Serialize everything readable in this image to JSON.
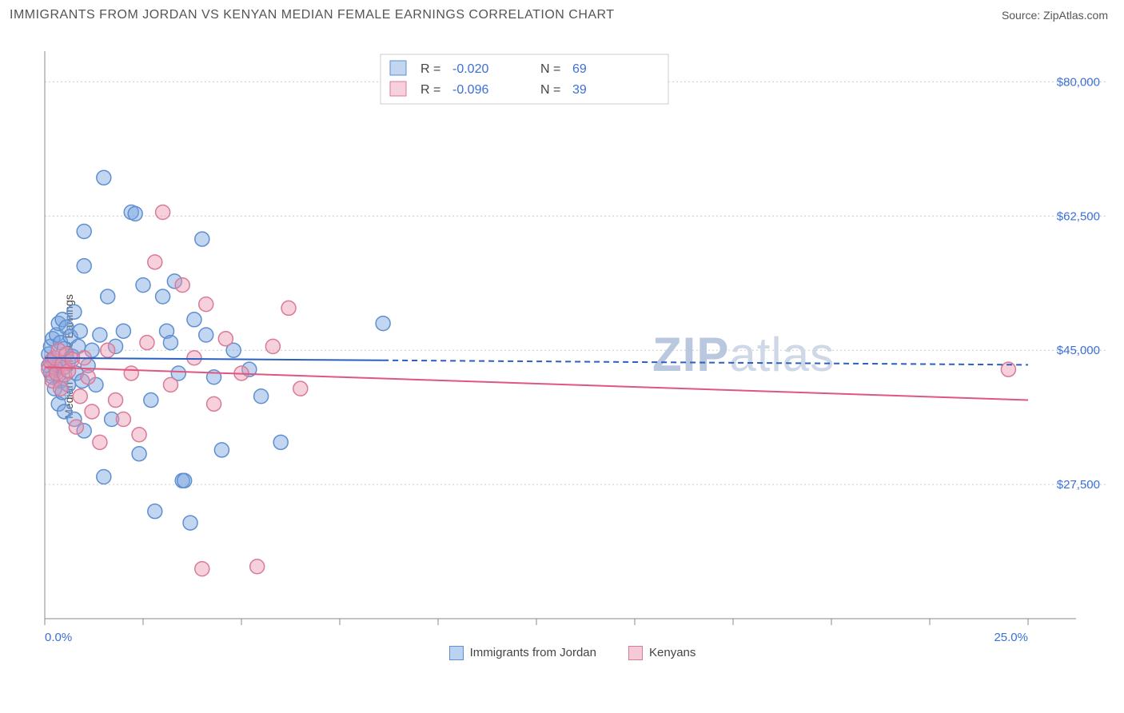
{
  "title": "IMMIGRANTS FROM JORDAN VS KENYAN MEDIAN FEMALE EARNINGS CORRELATION CHART",
  "source_label": "Source:",
  "source_name": "ZipAtlas.com",
  "ylabel": "Median Female Earnings",
  "watermark": "ZIPatlas",
  "chart": {
    "type": "scatter",
    "background": "#ffffff",
    "grid_color": "#cccccc",
    "axis_color": "#888888",
    "xlim": [
      0,
      25
    ],
    "ylim": [
      10000,
      84000
    ],
    "x_tick_positions": [
      0,
      2.5,
      5,
      7.5,
      10,
      12.5,
      15,
      17.5,
      20,
      22.5,
      25
    ],
    "x_tick_labels_show": [
      0,
      25
    ],
    "x_tick_labels": {
      "0": "0.0%",
      "25": "25.0%"
    },
    "y_grid_positions": [
      27500,
      45000,
      62500,
      80000
    ],
    "y_tick_labels": {
      "27500": "$27,500",
      "45000": "$45,000",
      "62500": "$62,500",
      "80000": "$80,000"
    },
    "marker_radius": 9,
    "marker_stroke_width": 1.5,
    "series": [
      {
        "name": "Immigrants from Jordan",
        "fill": "rgba(120,165,225,0.45)",
        "stroke": "#5e8fd0",
        "r_value": "-0.020",
        "n_value": "69",
        "regression": {
          "y_start": 44000,
          "y_end": 43100,
          "solid_until_x": 8.6,
          "color": "#2b5fc0",
          "width": 2
        },
        "points": [
          [
            0.1,
            43000
          ],
          [
            0.1,
            44500
          ],
          [
            0.15,
            42000
          ],
          [
            0.15,
            45500
          ],
          [
            0.2,
            41500
          ],
          [
            0.2,
            46500
          ],
          [
            0.2,
            43800
          ],
          [
            0.25,
            40000
          ],
          [
            0.25,
            44000
          ],
          [
            0.3,
            47000
          ],
          [
            0.3,
            42500
          ],
          [
            0.35,
            38000
          ],
          [
            0.35,
            48500
          ],
          [
            0.35,
            43000
          ],
          [
            0.4,
            41000
          ],
          [
            0.4,
            46000
          ],
          [
            0.45,
            39500
          ],
          [
            0.45,
            49000
          ],
          [
            0.5,
            42800
          ],
          [
            0.5,
            45200
          ],
          [
            0.5,
            37000
          ],
          [
            0.55,
            48000
          ],
          [
            0.6,
            43500
          ],
          [
            0.6,
            40500
          ],
          [
            0.65,
            46800
          ],
          [
            0.7,
            44200
          ],
          [
            0.75,
            50000
          ],
          [
            0.75,
            36000
          ],
          [
            0.8,
            42000
          ],
          [
            0.85,
            45500
          ],
          [
            0.9,
            47500
          ],
          [
            0.95,
            41000
          ],
          [
            1.0,
            60500
          ],
          [
            1.0,
            56000
          ],
          [
            1.0,
            34500
          ],
          [
            1.1,
            43000
          ],
          [
            1.2,
            45000
          ],
          [
            1.3,
            40500
          ],
          [
            1.4,
            47000
          ],
          [
            1.5,
            67500
          ],
          [
            1.5,
            28500
          ],
          [
            1.6,
            52000
          ],
          [
            1.7,
            36000
          ],
          [
            1.8,
            45500
          ],
          [
            2.0,
            47500
          ],
          [
            2.2,
            63000
          ],
          [
            2.3,
            62800
          ],
          [
            2.4,
            31500
          ],
          [
            2.5,
            53500
          ],
          [
            2.7,
            38500
          ],
          [
            2.8,
            24000
          ],
          [
            3.0,
            52000
          ],
          [
            3.1,
            47500
          ],
          [
            3.2,
            46000
          ],
          [
            3.3,
            54000
          ],
          [
            3.4,
            42000
          ],
          [
            3.5,
            28000
          ],
          [
            3.55,
            28000
          ],
          [
            3.7,
            22500
          ],
          [
            3.8,
            49000
          ],
          [
            4.0,
            59500
          ],
          [
            4.1,
            47000
          ],
          [
            4.3,
            41500
          ],
          [
            4.5,
            32000
          ],
          [
            4.8,
            45000
          ],
          [
            5.2,
            42500
          ],
          [
            5.5,
            39000
          ],
          [
            6.0,
            33000
          ],
          [
            8.6,
            48500
          ]
        ]
      },
      {
        "name": "Kenyans",
        "fill": "rgba(235,150,175,0.45)",
        "stroke": "#d97a99",
        "r_value": "-0.096",
        "n_value": "39",
        "regression": {
          "y_start": 42800,
          "y_end": 38500,
          "solid_until_x": 25,
          "color": "#e0567f",
          "width": 2
        },
        "points": [
          [
            0.1,
            42500
          ],
          [
            0.15,
            43500
          ],
          [
            0.2,
            41000
          ],
          [
            0.25,
            44000
          ],
          [
            0.3,
            42000
          ],
          [
            0.35,
            45000
          ],
          [
            0.4,
            40000
          ],
          [
            0.45,
            43200
          ],
          [
            0.5,
            41800
          ],
          [
            0.55,
            44500
          ],
          [
            0.6,
            42300
          ],
          [
            0.7,
            43800
          ],
          [
            0.8,
            35000
          ],
          [
            0.9,
            39000
          ],
          [
            1.0,
            44000
          ],
          [
            1.1,
            41500
          ],
          [
            1.2,
            37000
          ],
          [
            1.4,
            33000
          ],
          [
            1.6,
            45000
          ],
          [
            1.8,
            38500
          ],
          [
            2.0,
            36000
          ],
          [
            2.2,
            42000
          ],
          [
            2.4,
            34000
          ],
          [
            2.6,
            46000
          ],
          [
            2.8,
            56500
          ],
          [
            3.0,
            63000
          ],
          [
            3.2,
            40500
          ],
          [
            3.5,
            53500
          ],
          [
            3.8,
            44000
          ],
          [
            4.0,
            16500
          ],
          [
            4.1,
            51000
          ],
          [
            4.3,
            38000
          ],
          [
            4.6,
            46500
          ],
          [
            5.0,
            42000
          ],
          [
            5.4,
            16800
          ],
          [
            5.8,
            45500
          ],
          [
            6.2,
            50500
          ],
          [
            6.5,
            40000
          ],
          [
            24.5,
            42500
          ]
        ]
      }
    ],
    "legend_top": {
      "r_label": "R =",
      "n_label": "N ="
    },
    "legend_bottom": [
      {
        "label": "Immigrants from Jordan",
        "fill": "rgba(120,165,225,0.5)",
        "stroke": "#5e8fd0"
      },
      {
        "label": "Kenyans",
        "fill": "rgba(235,150,175,0.5)",
        "stroke": "#d97a99"
      }
    ]
  }
}
